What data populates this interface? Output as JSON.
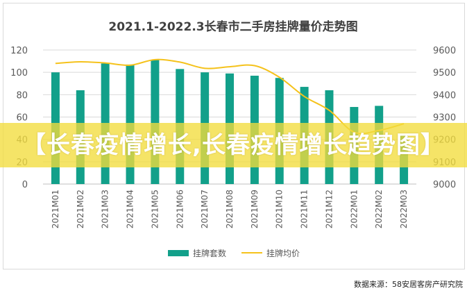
{
  "chart_data": {
    "type": "bar+line",
    "title": "2021.1-2022.3长春市二手房挂牌量价走势图",
    "categories": [
      "2021M01",
      "2021M02",
      "2021M03",
      "2021M04",
      "2021M05",
      "2021M06",
      "2021M07",
      "2021M08",
      "2021M09",
      "2021M10",
      "2021M11",
      "2021M12",
      "2022M01",
      "2022M02",
      "2022M03"
    ],
    "series": [
      {
        "name": "挂牌套数",
        "type": "bar",
        "axis": "left",
        "color": "#12a08a",
        "values": [
          100,
          84,
          108,
          107,
          111,
          103,
          100,
          99,
          97,
          95,
          87,
          84,
          69,
          70,
          45
        ]
      },
      {
        "name": "挂牌均价",
        "type": "line",
        "axis": "right",
        "color": "#f5c21b",
        "values": [
          9540,
          9547,
          9542,
          9532,
          9557,
          9546,
          9518,
          9525,
          9530,
          9478,
          9392,
          9330,
          9232,
          9240,
          9270
        ]
      }
    ],
    "y_left": {
      "min": 0,
      "max": 120,
      "ticks": [
        "0",
        "20",
        "40",
        "60",
        "80",
        "100",
        "120"
      ]
    },
    "y_right": {
      "min": 9000,
      "max": 9600,
      "ticks": [
        "9000",
        "9100",
        "9200",
        "9300",
        "9400",
        "9500",
        "9600"
      ]
    },
    "grid": true,
    "legend_position": "bottom"
  },
  "overlay": {
    "banner_text": "【长春疫情增长,长春疫情增长趋势图】"
  },
  "footer": {
    "source": "数据来源：58安居客房产研究院"
  }
}
